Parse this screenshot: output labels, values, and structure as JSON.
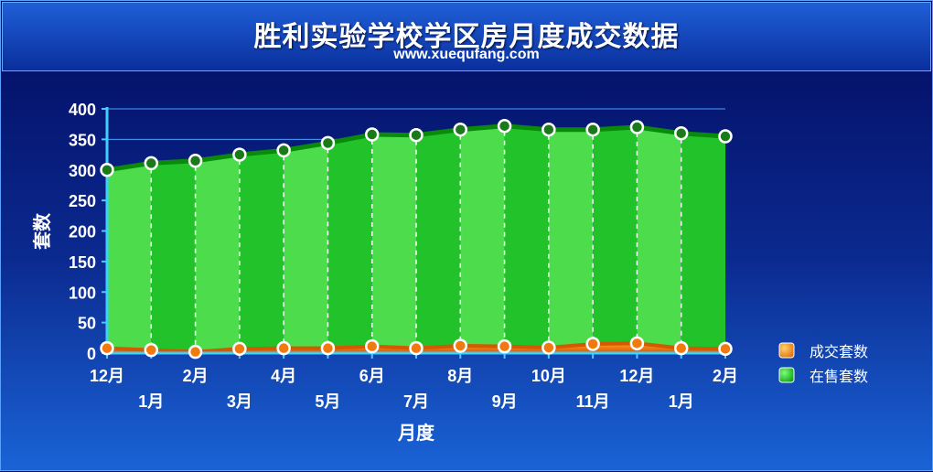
{
  "title": "胜利实验学校学区房月度成交数据",
  "subtitle": "www.xuequfang.com",
  "colors": {
    "sale_fill": "#22c22a",
    "sale_fill_light": "#4cdc4c",
    "sale_line": "#0a8a0a",
    "deal_fill": "#f07a10",
    "deal_line": "#d25a00",
    "marker_stroke": "#ffffff",
    "grid": "#4aa0ff",
    "axis": "#3fd0ff"
  },
  "chart_data": {
    "type": "area",
    "title": "胜利实验学校学区房月度成交数据",
    "xlabel": "月度",
    "ylabel": "套数",
    "categories": [
      "12月",
      "1月",
      "2月",
      "3月",
      "4月",
      "5月",
      "6月",
      "7月",
      "8月",
      "9月",
      "10月",
      "11月",
      "12月",
      "1月",
      "2月"
    ],
    "ylim": [
      0,
      400
    ],
    "yticks": [
      0,
      50,
      100,
      150,
      200,
      250,
      300,
      350,
      400
    ],
    "series": [
      {
        "name": "成交套数",
        "values": [
          8,
          5,
          2,
          7,
          8,
          8,
          11,
          8,
          12,
          11,
          9,
          15,
          16,
          8,
          7
        ]
      },
      {
        "name": "在售套数",
        "values": [
          300,
          311,
          315,
          325,
          332,
          344,
          358,
          357,
          366,
          372,
          366,
          366,
          370,
          360,
          355
        ]
      }
    ],
    "legend_position": "right",
    "grid": true
  }
}
